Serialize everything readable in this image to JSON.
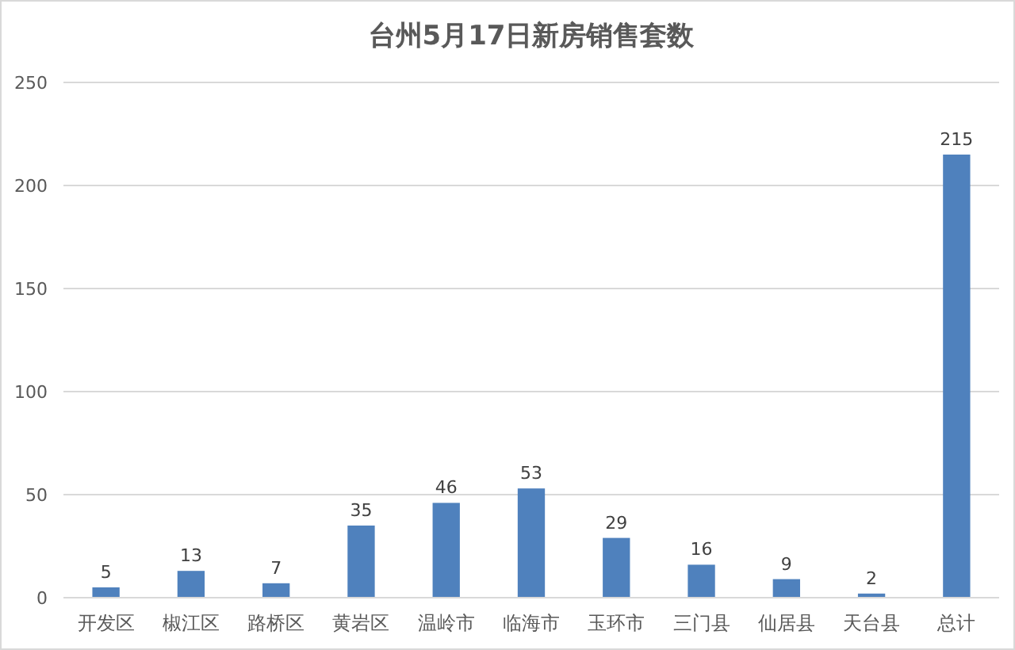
{
  "chart_data": {
    "type": "bar",
    "title": "台州5月17日新房销售套数",
    "categories": [
      "开发区",
      "椒江区",
      "路桥区",
      "黄岩区",
      "温岭市",
      "临海市",
      "玉环市",
      "三门县",
      "仙居县",
      "天台县",
      "总计"
    ],
    "values": [
      5,
      13,
      7,
      35,
      46,
      53,
      29,
      16,
      9,
      2,
      215
    ],
    "color": "#4f81bd",
    "ylim": [
      0,
      250
    ],
    "yticks": [
      0,
      50,
      100,
      150,
      200,
      250
    ],
    "grid": "y",
    "data_labels": true
  }
}
